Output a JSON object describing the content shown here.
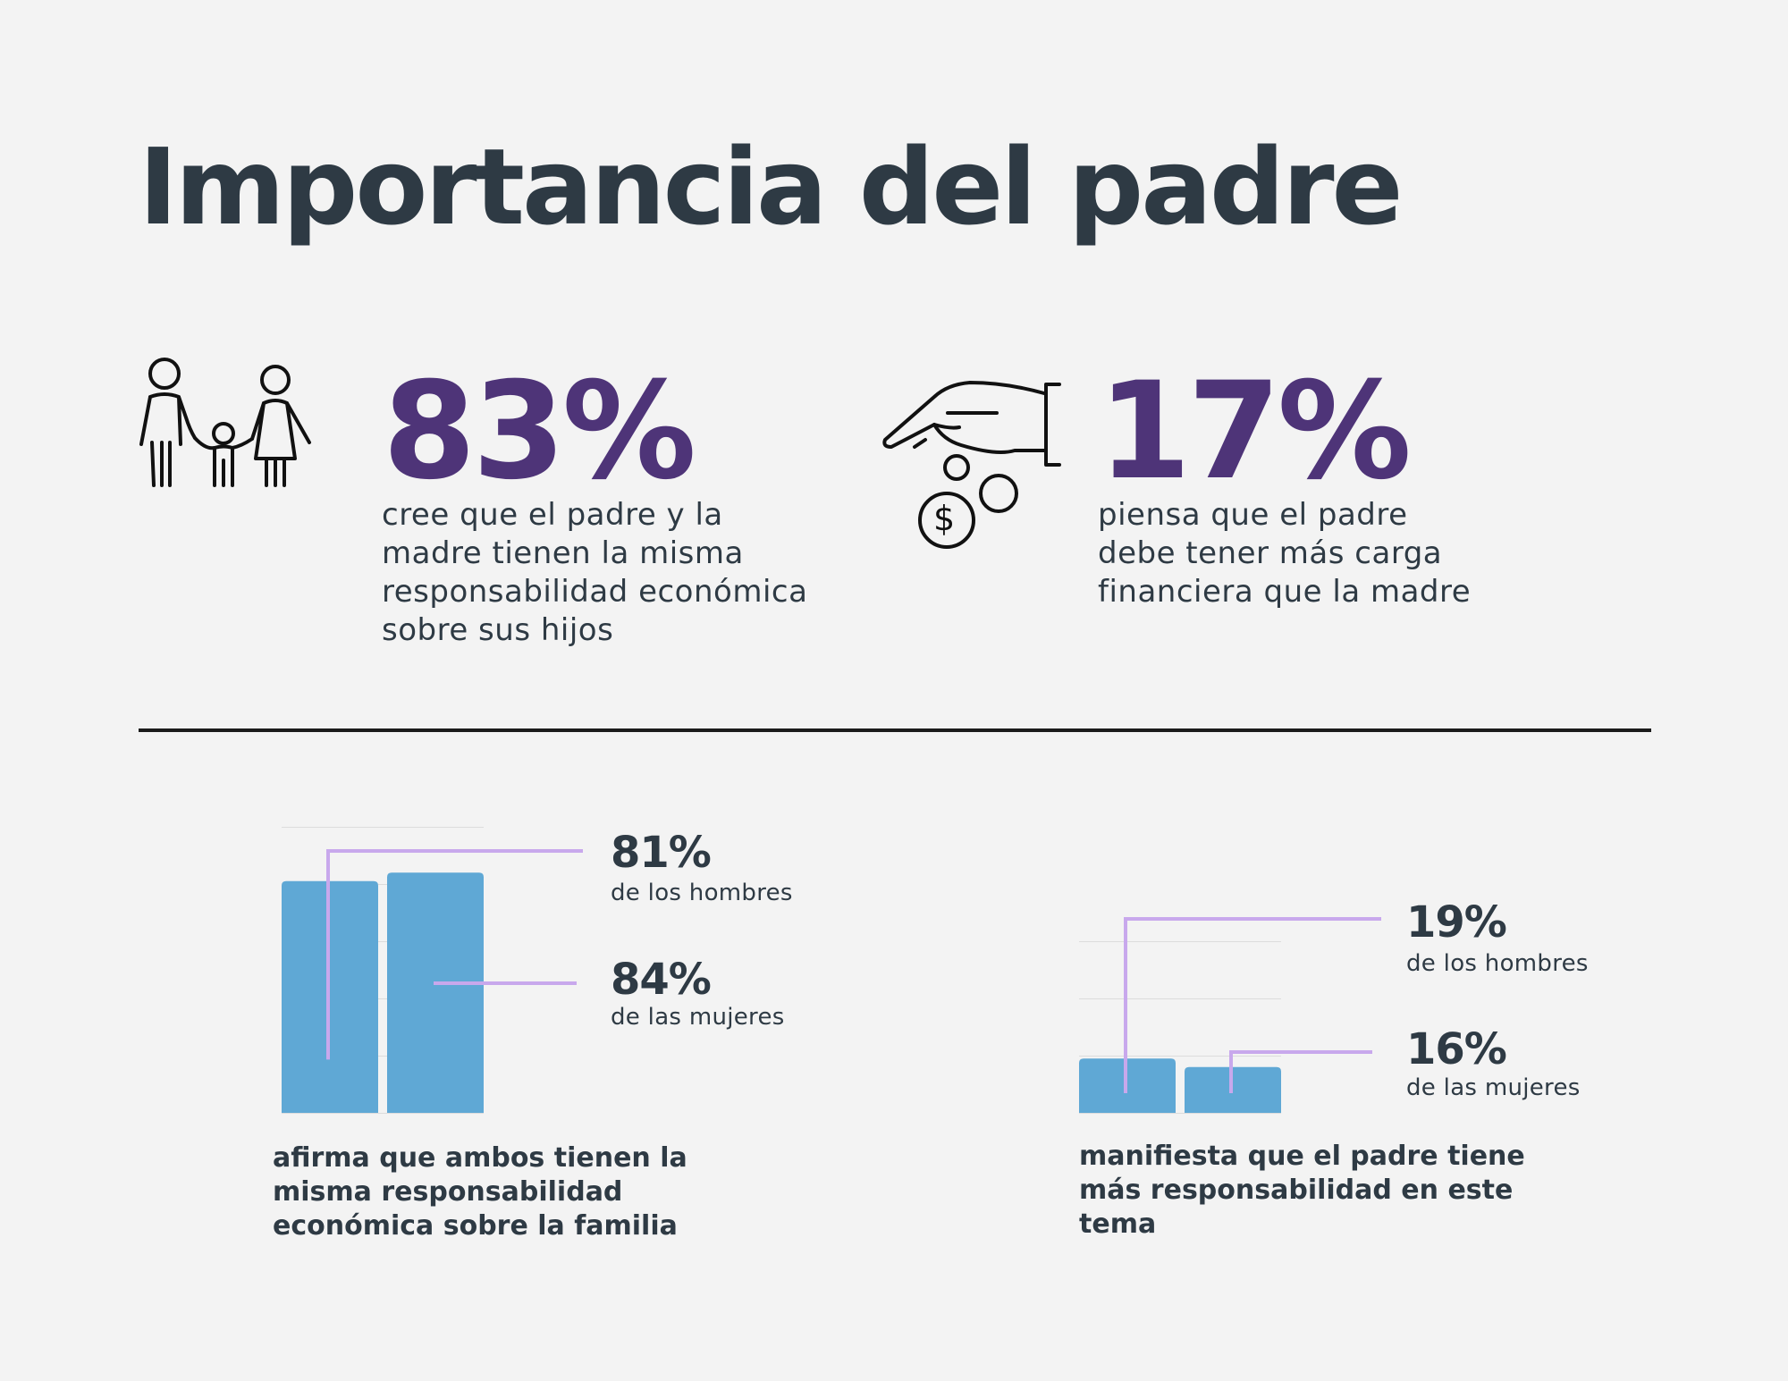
{
  "title": "Importancia del padre",
  "colors": {
    "accent": "#4e3478",
    "bar": "#5fa8d5",
    "leader": "#c8a8ec",
    "text": "#2e3a44",
    "background": "#f3f3f3"
  },
  "icons": {
    "left": "family-icon",
    "right": "hand-coins-icon"
  },
  "stats": [
    {
      "value": "83%",
      "description": "cree que el padre y la madre tienen la misma responsabilidad económica sobre sus hijos"
    },
    {
      "value": "17%",
      "description": "piensa que el padre debe tener más carga financiera que la madre"
    }
  ],
  "chart_data": [
    {
      "type": "bar",
      "categories": [
        "de los hombres",
        "de las mujeres"
      ],
      "values": [
        81,
        84
      ],
      "labels": [
        "81%",
        "84%"
      ],
      "ylim": [
        0,
        100
      ],
      "grid": true,
      "caption": "afirma que ambos tienen la misma responsabilidad económica sobre la familia"
    },
    {
      "type": "bar",
      "categories": [
        "de los hombres",
        "de las mujeres"
      ],
      "values": [
        19,
        16
      ],
      "labels": [
        "19%",
        "16%"
      ],
      "ylim": [
        0,
        100
      ],
      "grid": true,
      "caption": "manifiesta que el padre tiene más responsabilidad en este tema"
    }
  ]
}
